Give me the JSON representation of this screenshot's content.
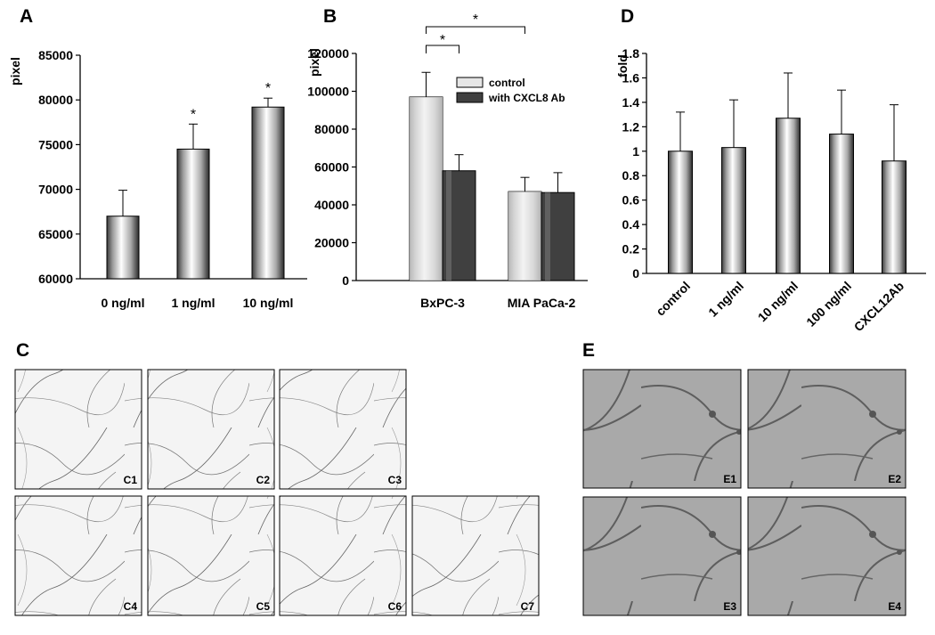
{
  "panels": {
    "A": {
      "letter": "A"
    },
    "B": {
      "letter": "B"
    },
    "C": {
      "letter": "C"
    },
    "D": {
      "letter": "D"
    },
    "E": {
      "letter": "E"
    }
  },
  "chart_data": [
    {
      "id": "A",
      "type": "bar",
      "ylabel": "pixel",
      "categories": [
        "0 ng/ml",
        "1 ng/ml",
        "10 ng/ml"
      ],
      "values": [
        67000,
        74500,
        79200
      ],
      "errors": [
        2900,
        2800,
        1000
      ],
      "significance": [
        "",
        "*",
        "*"
      ],
      "ylim": [
        60000,
        85000
      ],
      "yticks": [
        "60000",
        "65000",
        "70000",
        "75000",
        "80000",
        "85000"
      ],
      "ytick_values": [
        60000,
        65000,
        70000,
        75000,
        80000,
        85000
      ]
    },
    {
      "id": "B",
      "type": "bar",
      "ylabel": "pixel",
      "categories": [
        "BxPC-3",
        "MIA PaCa-2"
      ],
      "series": [
        {
          "name": "control",
          "values": [
            97000,
            47000
          ],
          "errors": [
            13000,
            7500
          ],
          "color": "#e6e6e6"
        },
        {
          "name": "with CXCL8 Ab",
          "values": [
            58000,
            46500
          ],
          "errors": [
            8500,
            10500
          ],
          "color": "#404040"
        }
      ],
      "significance_markers": [
        "*",
        "*"
      ],
      "ylim": [
        0,
        120000
      ],
      "yticks": [
        "0",
        "20000",
        "40000",
        "60000",
        "80000",
        "100000",
        "120000"
      ],
      "ytick_values": [
        0,
        20000,
        40000,
        60000,
        80000,
        100000,
        120000
      ],
      "legend_position": "top-right"
    },
    {
      "id": "D",
      "type": "bar",
      "ylabel": "fold",
      "categories": [
        "control",
        "1 ng/ml",
        "10 ng/ml",
        "100 ng/ml",
        "CXCL12Ab"
      ],
      "values": [
        1.0,
        1.03,
        1.27,
        1.14,
        0.92
      ],
      "errors": [
        0.32,
        0.39,
        0.37,
        0.36,
        0.46
      ],
      "ylim": [
        0,
        1.8
      ],
      "yticks": [
        "0",
        "0.2",
        "0.4",
        "0.6",
        "0.8",
        "1",
        "1.2",
        "1.4",
        "1.6",
        "1.8"
      ],
      "ytick_values": [
        0,
        0.2,
        0.4,
        0.6,
        0.8,
        1.0,
        1.2,
        1.4,
        1.6,
        1.8
      ]
    }
  ],
  "images_c": [
    "C1",
    "C2",
    "C3",
    "C4",
    "C5",
    "C6",
    "C7"
  ],
  "images_e": [
    "E1",
    "E2",
    "E3",
    "E4"
  ]
}
